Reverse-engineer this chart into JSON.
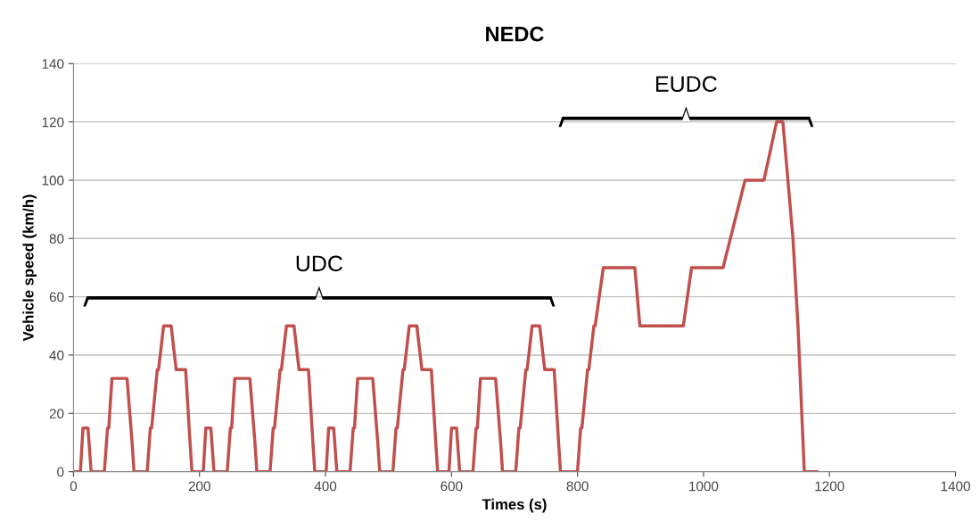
{
  "chart_data": {
    "type": "line",
    "title": "NEDC",
    "xlabel": "Times (s)",
    "ylabel": "Vehicle speed (km/h)",
    "series": [
      {
        "color": "#c0504d",
        "x": [
          0,
          11,
          15,
          23,
          28,
          49,
          54,
          56,
          61,
          85,
          93,
          96,
          117,
          122,
          124,
          133,
          135,
          143,
          155,
          163,
          176,
          178,
          185,
          188,
          195,
          206,
          210,
          218,
          223,
          244,
          249,
          251,
          256,
          280,
          288,
          291,
          312,
          317,
          319,
          328,
          330,
          338,
          350,
          358,
          371,
          373,
          380,
          383,
          390,
          401,
          405,
          413,
          418,
          439,
          444,
          446,
          451,
          475,
          483,
          486,
          507,
          512,
          514,
          523,
          525,
          533,
          545,
          553,
          566,
          568,
          575,
          578,
          585,
          596,
          600,
          608,
          613,
          634,
          639,
          641,
          646,
          670,
          678,
          681,
          702,
          707,
          709,
          718,
          720,
          728,
          740,
          748,
          761,
          763,
          770,
          773,
          780,
          800,
          805,
          807,
          816,
          818,
          826,
          828,
          841,
          891,
          899,
          968,
          981,
          1031,
          1066,
          1096,
          1116,
          1126,
          1142,
          1150,
          1160,
          1180
        ],
        "values": [
          0,
          0,
          15,
          15,
          0,
          0,
          15,
          15,
          32,
          32,
          10,
          0,
          0,
          15,
          15,
          35,
          35,
          50,
          50,
          35,
          35,
          35,
          10,
          0,
          0,
          0,
          15,
          15,
          0,
          0,
          15,
          15,
          32,
          32,
          10,
          0,
          0,
          15,
          15,
          35,
          35,
          50,
          50,
          35,
          35,
          35,
          10,
          0,
          0,
          0,
          15,
          15,
          0,
          0,
          15,
          15,
          32,
          32,
          10,
          0,
          0,
          15,
          15,
          35,
          35,
          50,
          50,
          35,
          35,
          35,
          10,
          0,
          0,
          0,
          15,
          15,
          0,
          0,
          15,
          15,
          32,
          32,
          10,
          0,
          0,
          15,
          15,
          35,
          35,
          50,
          50,
          35,
          35,
          35,
          10,
          0,
          0,
          0,
          15,
          15,
          35,
          35,
          50,
          50,
          70,
          70,
          50,
          50,
          70,
          70,
          100,
          100,
          120,
          120,
          80,
          50,
          0,
          0
        ]
      }
    ],
    "xlim": [
      0,
      1400
    ],
    "xticks": [
      0,
      200,
      400,
      600,
      800,
      1000,
      1200,
      1400
    ],
    "ylim": [
      0,
      140
    ],
    "yticks": [
      0,
      20,
      40,
      60,
      80,
      100,
      120,
      140
    ],
    "grid": "y",
    "legend": false,
    "marker": "none",
    "line_style": "solid",
    "annotations": [
      "UDC",
      "EUDC"
    ]
  }
}
